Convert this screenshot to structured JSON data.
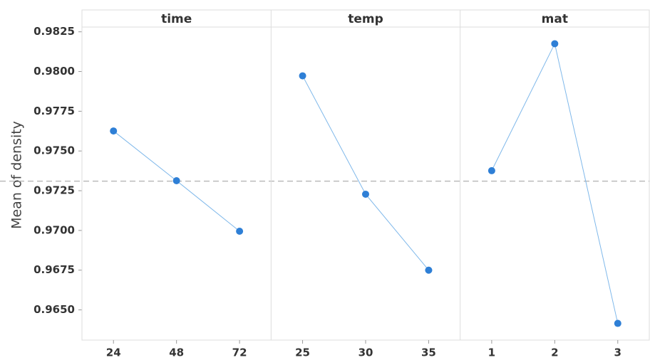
{
  "chart_data": {
    "type": "line",
    "ylabel": "Mean of density",
    "ylim": [
      0.9631,
      0.9828
    ],
    "yticks": [
      {
        "value": 0.965,
        "label": "0.9650"
      },
      0.9675,
      {
        "value": 0.97,
        "label": "0.9700"
      },
      0.9725,
      {
        "value": 0.975,
        "label": "0.9750"
      },
      0.9775,
      {
        "value": 0.98,
        "label": "0.9800"
      },
      0.9825
    ],
    "reference_line": 0.9731,
    "color": "#2e7fd6",
    "line_color": "#7fb8ea",
    "panels": [
      {
        "title": "time",
        "categories": [
          "24",
          "48",
          "72"
        ],
        "values": [
          0.97626,
          0.97313,
          0.96995
        ]
      },
      {
        "title": "temp",
        "categories": [
          "25",
          "30",
          "35"
        ],
        "values": [
          0.97973,
          0.97228,
          0.9675
        ]
      },
      {
        "title": "mat",
        "categories": [
          "1",
          "2",
          "3"
        ],
        "values": [
          0.97376,
          0.98175,
          0.96415
        ]
      }
    ]
  }
}
